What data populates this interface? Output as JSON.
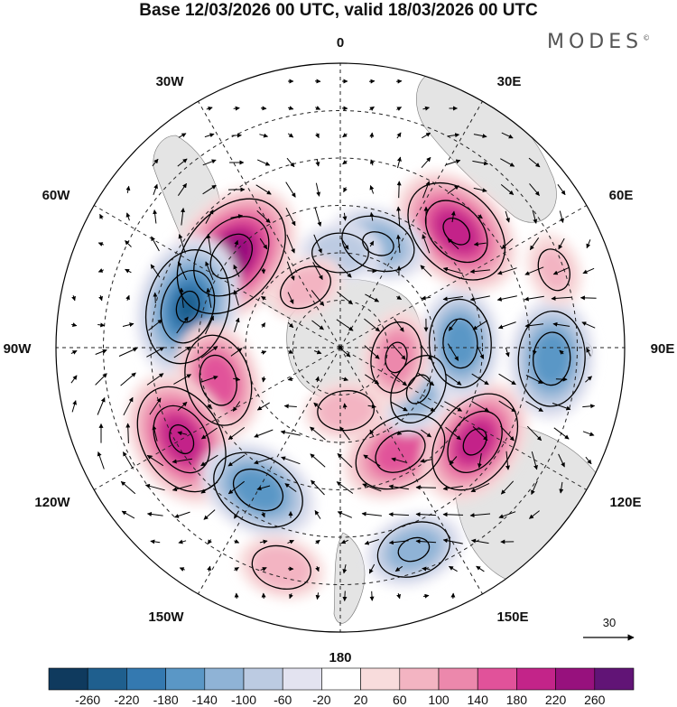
{
  "title": "Base 12/03/2026 00 UTC, valid 18/03/2026 00 UTC",
  "logo": {
    "text": "MODES",
    "mark": "©"
  },
  "longitude_labels": {
    "lon_0": "0",
    "lon_30e": "30E",
    "lon_60e": "60E",
    "lon_90e": "90E",
    "lon_120e": "120E",
    "lon_150e": "150E",
    "lon_180": "180",
    "lon_150w": "150W",
    "lon_120w": "120W",
    "lon_90w": "90W",
    "lon_60w": "60W",
    "lon_30w": "30W"
  },
  "wind_reference": {
    "label": "30"
  },
  "colorbar": {
    "colors": [
      "#0f3a5e",
      "#1f5f8e",
      "#3479b0",
      "#5a97c6",
      "#8fb3d6",
      "#bccbe2",
      "#e3e3f0",
      "#ffffff",
      "#f8dcdc",
      "#f3b4c2",
      "#ec88ac",
      "#e1529a",
      "#c32489",
      "#97117d",
      "#611476"
    ],
    "labels": [
      "-260",
      "-220",
      "-180",
      "-140",
      "-100",
      "-60",
      "-20",
      "20",
      "60",
      "100",
      "140",
      "180",
      "220",
      "260"
    ]
  },
  "anomaly_centers": [
    {
      "lon_deg": 310,
      "colat_deg": 45,
      "value": 250
    },
    {
      "lon_deg": 285,
      "colat_deg": 50,
      "value": -220
    },
    {
      "lon_deg": 255,
      "colat_deg": 40,
      "value": 160
    },
    {
      "lon_deg": 240,
      "colat_deg": 58,
      "value": 210
    },
    {
      "lon_deg": 210,
      "colat_deg": 52,
      "value": -170
    },
    {
      "lon_deg": 195,
      "colat_deg": 72,
      "value": 90
    },
    {
      "lon_deg": 160,
      "colat_deg": 68,
      "value": -120
    },
    {
      "lon_deg": 150,
      "colat_deg": 38,
      "value": 170
    },
    {
      "lon_deg": 125,
      "colat_deg": 52,
      "value": 190
    },
    {
      "lon_deg": 118,
      "colat_deg": 28,
      "value": -110
    },
    {
      "lon_deg": 93,
      "colat_deg": 67,
      "value": -170
    },
    {
      "lon_deg": 88,
      "colat_deg": 38,
      "value": -150
    },
    {
      "lon_deg": 45,
      "colat_deg": 52,
      "value": 210
    },
    {
      "lon_deg": 20,
      "colat_deg": 35,
      "value": -120
    },
    {
      "lon_deg": 0,
      "colat_deg": 30,
      "value": -80
    },
    {
      "lon_deg": 330,
      "colat_deg": 22,
      "value": 70
    },
    {
      "lon_deg": 70,
      "colat_deg": 72,
      "value": 60
    },
    {
      "lon_deg": 175,
      "colat_deg": 20,
      "value": 80
    },
    {
      "lon_deg": 100,
      "colat_deg": 18,
      "value": 110
    }
  ]
}
